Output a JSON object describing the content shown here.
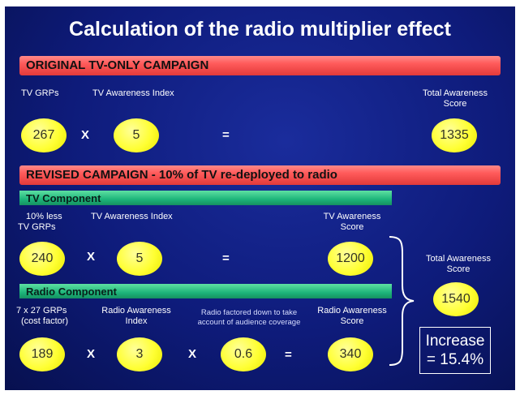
{
  "title": "Calculation of the radio multiplier effect",
  "original": {
    "header": "ORIGINAL TV-ONLY CAMPAIGN",
    "label_grps": "TV GRPs",
    "label_index": "TV Awareness Index",
    "label_total_1": "Total Awareness",
    "label_total_2": "Score",
    "grps": "267",
    "op_times": "X",
    "index": "5",
    "op_equals": "=",
    "total": "1335"
  },
  "revised": {
    "header": "REVISED CAMPAIGN - 10% of TV re-deployed to radio",
    "tv": {
      "header": "TV Component",
      "label_grps_1": "10% less",
      "label_grps_2": "TV GRPs",
      "label_index": "TV Awareness Index",
      "label_score_1": "TV Awareness",
      "label_score_2": "Score",
      "grps": "240",
      "op_times": "X",
      "index": "5",
      "op_equals": "=",
      "score": "1200"
    },
    "radio": {
      "header": "Radio Component",
      "label_grps_1": "7 x 27 GRPs",
      "label_grps_2": "(cost factor)",
      "label_index_1": "Radio Awareness",
      "label_index_2": "Index",
      "label_factor_1": "Radio factored down to take",
      "label_factor_2": "account of audience coverage",
      "label_score_1": "Radio Awareness",
      "label_score_2": "Score",
      "grps": "189",
      "op_times_1": "X",
      "index": "3",
      "op_times_2": "X",
      "factor": "0.6",
      "op_equals": "=",
      "score": "340"
    },
    "total": {
      "label_1": "Total Awareness",
      "label_2": "Score",
      "value": "1540"
    },
    "increase": {
      "line1": "Increase",
      "line2": "= 15.4%"
    }
  },
  "colors": {
    "background": "#0e1b7a",
    "red_bar": "#ff5a5a",
    "green_bar": "#1db57a",
    "circle": "#ffff33"
  }
}
